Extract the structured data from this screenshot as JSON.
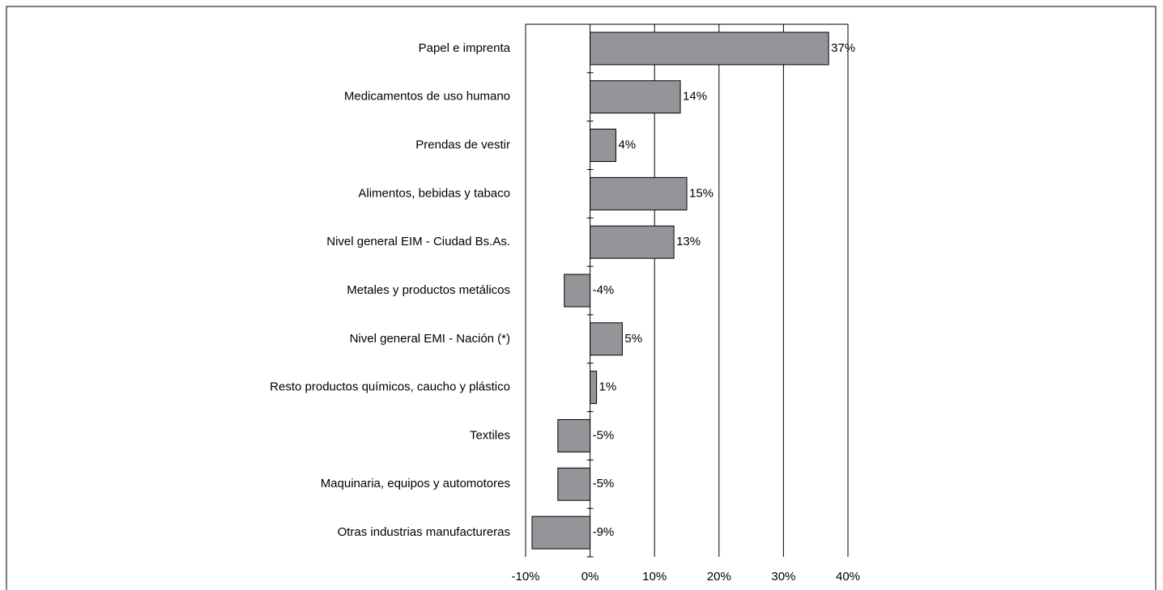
{
  "chart_data": {
    "type": "bar",
    "orientation": "horizontal",
    "categories": [
      "Papel e imprenta",
      "Medicamentos de uso humano",
      "Prendas de vestir",
      "Alimentos, bebidas y tabaco",
      "Nivel general EIM - Ciudad Bs.As.",
      "Metales y productos metálicos",
      "Nivel general EMI - Nación (*)",
      "Resto productos químicos, caucho y plástico",
      "Textiles",
      "Maquinaria, equipos y automotores",
      "Otras industrias manufactureras"
    ],
    "values": [
      37,
      14,
      4,
      15,
      13,
      -4,
      5,
      1,
      -5,
      -5,
      -9
    ],
    "value_labels": [
      "37%",
      "14%",
      "4%",
      "15%",
      "13%",
      "-4%",
      "5%",
      "1%",
      "-5%",
      "-5%",
      "-9%"
    ],
    "color": "#939598",
    "xlim": [
      -10,
      40
    ],
    "xticks": [
      {
        "value": -10,
        "label": "-10%"
      },
      {
        "value": 0,
        "label": "0%"
      },
      {
        "value": 10,
        "label": "10%"
      },
      {
        "value": 20,
        "label": "20%"
      },
      {
        "value": 30,
        "label": "30%"
      },
      {
        "value": 40,
        "label": "40%"
      }
    ],
    "grid": true
  }
}
